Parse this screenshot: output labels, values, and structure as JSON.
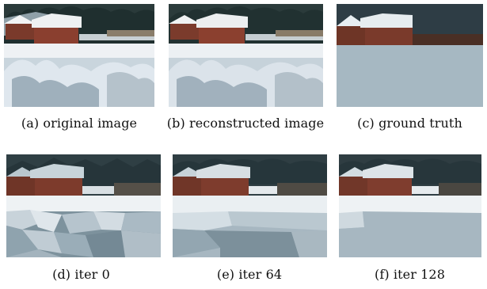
{
  "figure": {
    "panels": [
      {
        "id": "a",
        "caption": "(a) original image"
      },
      {
        "id": "b",
        "caption": "(b) reconstructed image"
      },
      {
        "id": "c",
        "caption": "(c) ground truth"
      },
      {
        "id": "d",
        "caption": "(d) iter 0"
      },
      {
        "id": "e",
        "caption": "(e) iter 64"
      },
      {
        "id": "f",
        "caption": "(f) iter 128"
      }
    ]
  }
}
